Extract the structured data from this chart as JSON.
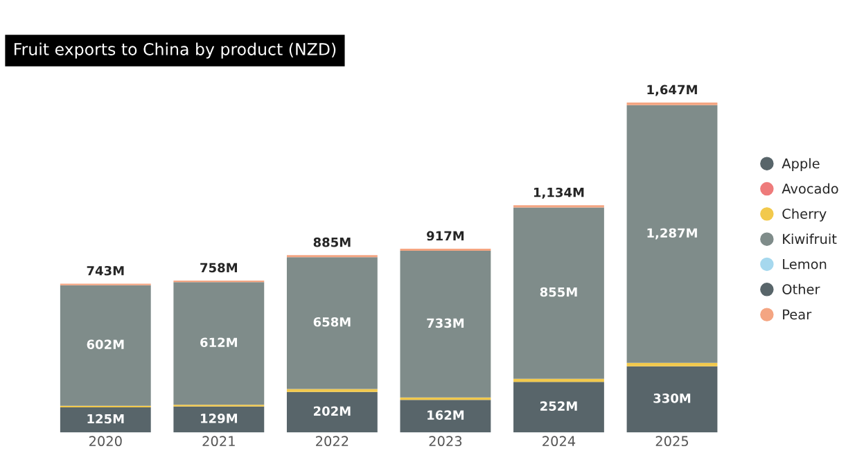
{
  "chart_data": {
    "type": "bar",
    "title": "Fruit exports to China by product (NZD)",
    "stacked": true,
    "categories": [
      "2020",
      "2021",
      "2022",
      "2023",
      "2024",
      "2025"
    ],
    "series": [
      {
        "name": "Apple",
        "color": "#58656a",
        "values": [
          125,
          129,
          202,
          162,
          252,
          330
        ],
        "value_labels": [
          "125M",
          "129M",
          "202M",
          "162M",
          "252M",
          "330M"
        ]
      },
      {
        "name": "Avocado",
        "color": "#ee7b7b",
        "values": [
          null,
          null,
          null,
          null,
          null,
          null
        ]
      },
      {
        "name": "Cherry",
        "color": "#f2c94c",
        "values": [
          8,
          9,
          15,
          12,
          16,
          17
        ]
      },
      {
        "name": "Kiwifruit",
        "color": "#7f8c8a",
        "values": [
          602,
          612,
          658,
          733,
          855,
          1287
        ],
        "value_labels": [
          "602M",
          "612M",
          "658M",
          "733M",
          "855M",
          "1,287M"
        ]
      },
      {
        "name": "Lemon",
        "color": "#a6d8ee",
        "values": [
          null,
          null,
          null,
          null,
          null,
          null
        ]
      },
      {
        "name": "Other",
        "color": "#58656a",
        "values": [
          null,
          null,
          null,
          null,
          null,
          null
        ]
      },
      {
        "name": "Pear",
        "color": "#f4a582",
        "values": [
          8,
          8,
          10,
          10,
          11,
          13
        ]
      }
    ],
    "totals": [
      "743M",
      "758M",
      "885M",
      "917M",
      "1,134M",
      "1,647M"
    ],
    "legend": "right",
    "tick_labels": "x",
    "grid": false
  }
}
